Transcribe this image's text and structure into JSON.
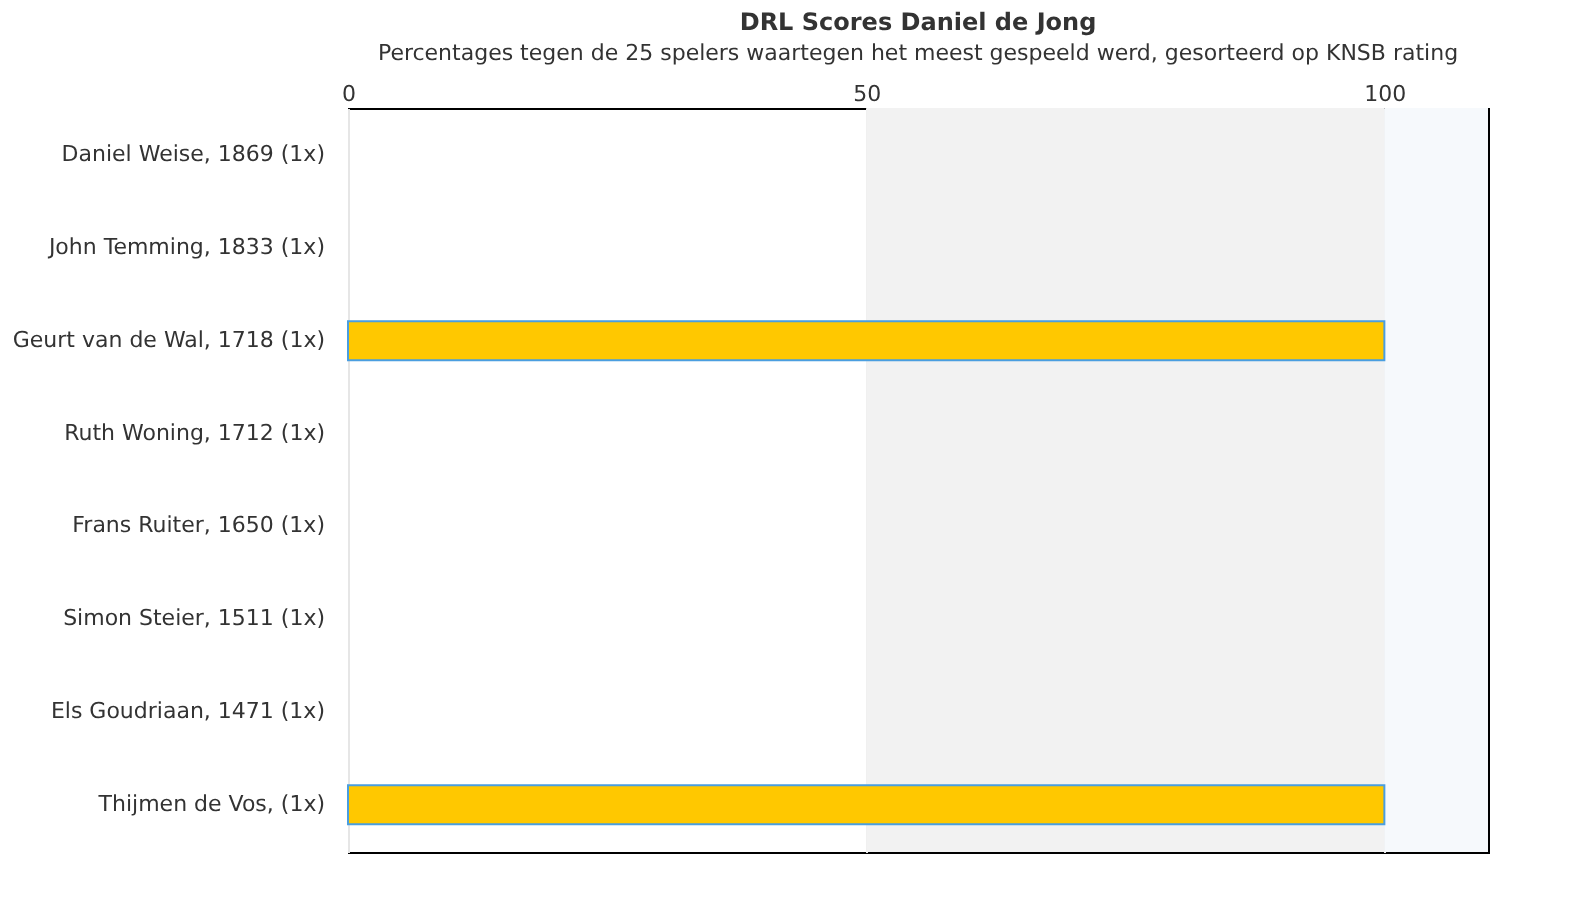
{
  "chart_data": {
    "type": "bar",
    "orientation": "horizontal",
    "title": "DRL Scores Daniel de Jong",
    "subtitle": "Percentages tegen de 25 spelers waartegen het meest gespeeld werd, gesorteerd op KNSB rating",
    "categories": [
      "Daniel Weise, 1869 (1x)",
      "John Temming, 1833 (1x)",
      "Geurt van de Wal, 1718 (1x)",
      "Ruth Woning, 1712 (1x)",
      "Frans Ruiter, 1650 (1x)",
      "Simon Steier, 1511 (1x)",
      "Els Goudriaan, 1471 (1x)",
      "Thijmen de Vos,  (1x)"
    ],
    "values": [
      0,
      0,
      100,
      0,
      0,
      0,
      0,
      100
    ],
    "colors": [
      "#ffc800",
      "#ffc800",
      "#ffc800",
      "#ffc800",
      "#ffc800",
      "#ffc800",
      "#ffc800",
      "#ffc800"
    ],
    "xlim": [
      0,
      110
    ],
    "xticks": [
      0,
      50,
      100
    ],
    "grid": "x",
    "bands": [
      {
        "axis": "x",
        "from": 50,
        "to": 100,
        "color": "#f2f2f2"
      },
      {
        "axis": "x",
        "from": 100,
        "to": 110,
        "color": "#f6f9fc"
      }
    ]
  }
}
